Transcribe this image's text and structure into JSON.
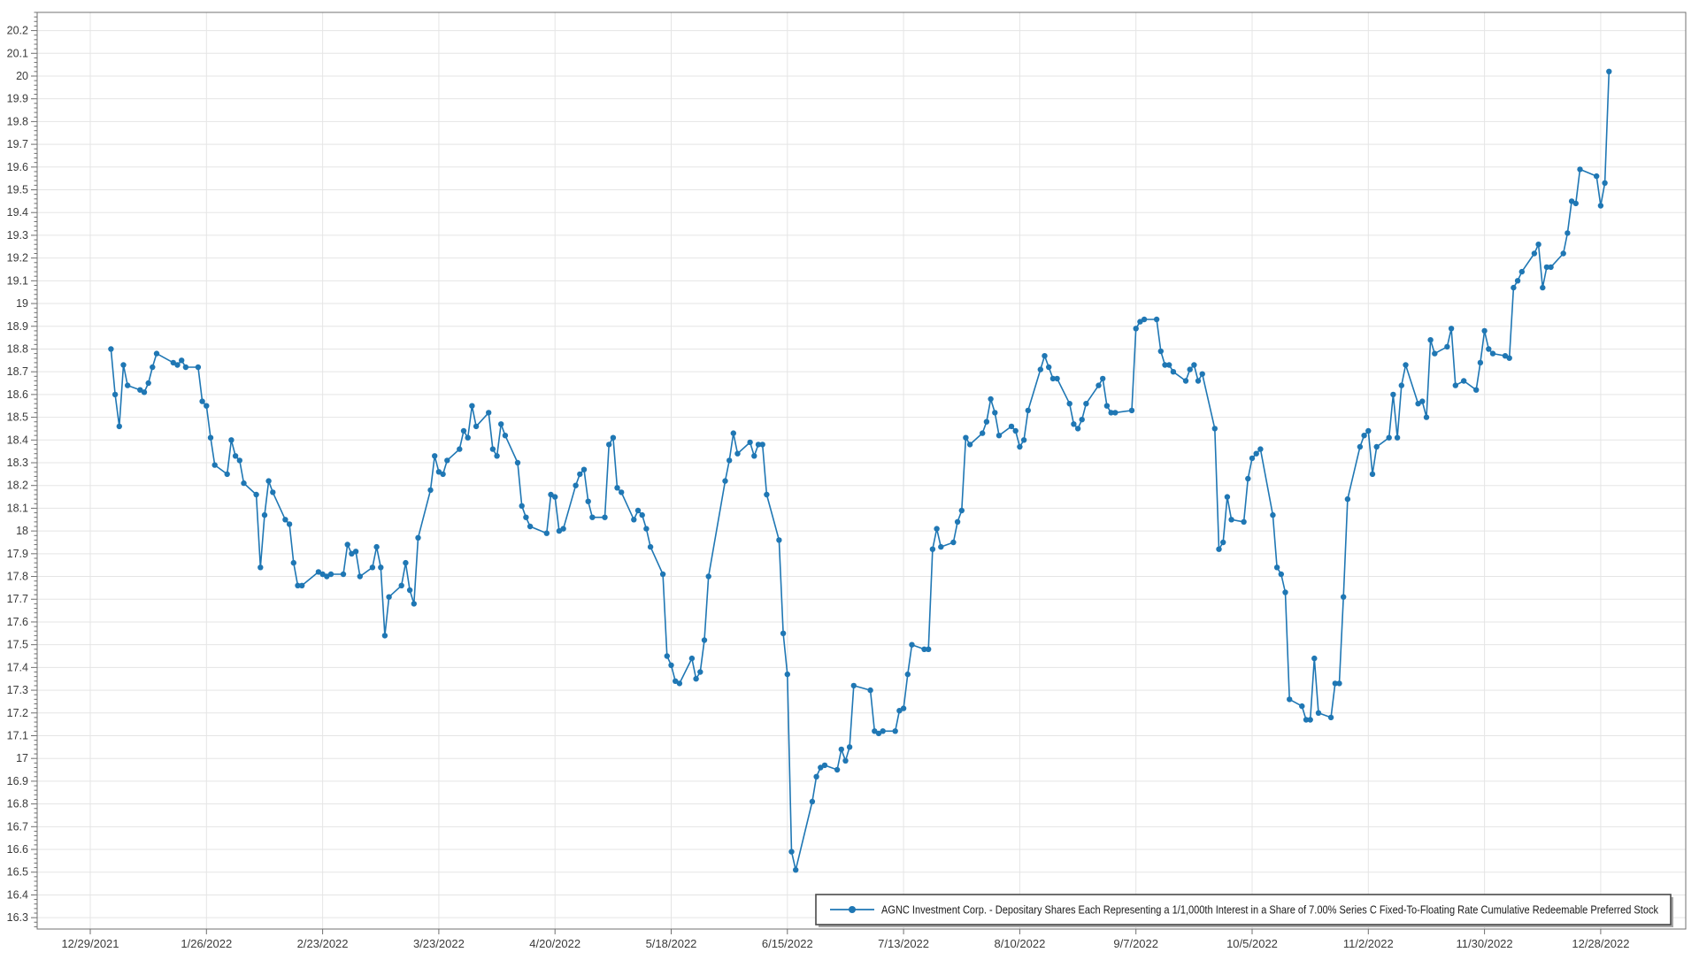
{
  "legend": {
    "label": "AGNC Investment Corp. - Depositary Shares Each Representing a 1/1,000th Interest in a Share of 7.00% Series C Fixed-To-Floating Rate Cumulative Redeemable Preferred Stock"
  },
  "colors": {
    "series": "#1f77b4",
    "grid": "#e5e5e5",
    "axis": "#707070",
    "label": "#3a3a3a",
    "legend_border": "#4a4a4a",
    "legend_shadow": "#a6a6a6",
    "background": "#ffffff"
  },
  "chart_data": {
    "type": "line",
    "title": "",
    "legend_position": "bottom-right",
    "grid": true,
    "marker": "circle",
    "series_name": "AGNC Investment Corp. - Depositary Shares Each Representing a 1/1,000th Interest in a Share of 7.00% Series C Fixed-To-Floating Rate Cumulative Redeemable Preferred Stock",
    "y_axis": {
      "min": 16.25,
      "max": 20.28,
      "tick_start": 16.3,
      "tick_end": 20.2,
      "tick_step": 0.1,
      "minor_tick_step": 0.02,
      "tick_labels": [
        "16.3",
        "16.4",
        "16.5",
        "16.6",
        "16.7",
        "16.8",
        "16.9",
        "17",
        "17.1",
        "17.2",
        "17.3",
        "17.4",
        "17.5",
        "17.6",
        "17.7",
        "17.8",
        "17.9",
        "18",
        "18.1",
        "18.2",
        "18.3",
        "18.4",
        "18.5",
        "18.6",
        "18.7",
        "18.8",
        "18.9",
        "19",
        "19.1",
        "19.2",
        "19.3",
        "19.4",
        "19.5",
        "19.6",
        "19.7",
        "19.8",
        "19.9",
        "20",
        "20.1",
        "20.2"
      ]
    },
    "x_axis": {
      "start_date": "2021-12-29",
      "tick_interval_days": 28,
      "tick_labels": [
        "12/29/2021",
        "1/26/2022",
        "2/23/2022",
        "3/23/2022",
        "4/20/2022",
        "5/18/2022",
        "6/15/2022",
        "7/13/2022",
        "8/10/2022",
        "9/7/2022",
        "10/5/2022",
        "11/2/2022",
        "11/30/2022",
        "12/28/2022"
      ]
    },
    "dates": [
      "2022-01-03",
      "2022-01-04",
      "2022-01-05",
      "2022-01-06",
      "2022-01-07",
      "2022-01-10",
      "2022-01-11",
      "2022-01-12",
      "2022-01-13",
      "2022-01-14",
      "2022-01-18",
      "2022-01-19",
      "2022-01-20",
      "2022-01-21",
      "2022-01-24",
      "2022-01-25",
      "2022-01-26",
      "2022-01-27",
      "2022-01-28",
      "2022-01-31",
      "2022-02-01",
      "2022-02-02",
      "2022-02-03",
      "2022-02-04",
      "2022-02-07",
      "2022-02-08",
      "2022-02-09",
      "2022-02-10",
      "2022-02-11",
      "2022-02-14",
      "2022-02-15",
      "2022-02-16",
      "2022-02-17",
      "2022-02-18",
      "2022-02-22",
      "2022-02-23",
      "2022-02-24",
      "2022-02-25",
      "2022-02-28",
      "2022-03-01",
      "2022-03-02",
      "2022-03-03",
      "2022-03-04",
      "2022-03-07",
      "2022-03-08",
      "2022-03-09",
      "2022-03-10",
      "2022-03-11",
      "2022-03-14",
      "2022-03-15",
      "2022-03-16",
      "2022-03-17",
      "2022-03-18",
      "2022-03-21",
      "2022-03-22",
      "2022-03-23",
      "2022-03-24",
      "2022-03-25",
      "2022-03-28",
      "2022-03-29",
      "2022-03-30",
      "2022-03-31",
      "2022-04-01",
      "2022-04-04",
      "2022-04-05",
      "2022-04-06",
      "2022-04-07",
      "2022-04-08",
      "2022-04-11",
      "2022-04-12",
      "2022-04-13",
      "2022-04-14",
      "2022-04-18",
      "2022-04-19",
      "2022-04-20",
      "2022-04-21",
      "2022-04-22",
      "2022-04-25",
      "2022-04-26",
      "2022-04-27",
      "2022-04-28",
      "2022-04-29",
      "2022-05-02",
      "2022-05-03",
      "2022-05-04",
      "2022-05-05",
      "2022-05-06",
      "2022-05-09",
      "2022-05-10",
      "2022-05-11",
      "2022-05-12",
      "2022-05-13",
      "2022-05-16",
      "2022-05-17",
      "2022-05-18",
      "2022-05-19",
      "2022-05-20",
      "2022-05-23",
      "2022-05-24",
      "2022-05-25",
      "2022-05-26",
      "2022-05-27",
      "2022-05-31",
      "2022-06-01",
      "2022-06-02",
      "2022-06-03",
      "2022-06-06",
      "2022-06-07",
      "2022-06-08",
      "2022-06-09",
      "2022-06-10",
      "2022-06-13",
      "2022-06-14",
      "2022-06-15",
      "2022-06-16",
      "2022-06-17",
      "2022-06-21",
      "2022-06-22",
      "2022-06-23",
      "2022-06-24",
      "2022-06-27",
      "2022-06-28",
      "2022-06-29",
      "2022-06-30",
      "2022-07-01",
      "2022-07-05",
      "2022-07-06",
      "2022-07-07",
      "2022-07-08",
      "2022-07-11",
      "2022-07-12",
      "2022-07-13",
      "2022-07-14",
      "2022-07-15",
      "2022-07-18",
      "2022-07-19",
      "2022-07-20",
      "2022-07-21",
      "2022-07-22",
      "2022-07-25",
      "2022-07-26",
      "2022-07-27",
      "2022-07-28",
      "2022-07-29",
      "2022-08-01",
      "2022-08-02",
      "2022-08-03",
      "2022-08-04",
      "2022-08-05",
      "2022-08-08",
      "2022-08-09",
      "2022-08-10",
      "2022-08-11",
      "2022-08-12",
      "2022-08-15",
      "2022-08-16",
      "2022-08-17",
      "2022-08-18",
      "2022-08-19",
      "2022-08-22",
      "2022-08-23",
      "2022-08-24",
      "2022-08-25",
      "2022-08-26",
      "2022-08-29",
      "2022-08-30",
      "2022-08-31",
      "2022-09-01",
      "2022-09-02",
      "2022-09-06",
      "2022-09-07",
      "2022-09-08",
      "2022-09-09",
      "2022-09-12",
      "2022-09-13",
      "2022-09-14",
      "2022-09-15",
      "2022-09-16",
      "2022-09-19",
      "2022-09-20",
      "2022-09-21",
      "2022-09-22",
      "2022-09-23",
      "2022-09-26",
      "2022-09-27",
      "2022-09-28",
      "2022-09-29",
      "2022-09-30",
      "2022-10-03",
      "2022-10-04",
      "2022-10-05",
      "2022-10-06",
      "2022-10-07",
      "2022-10-10",
      "2022-10-11",
      "2022-10-12",
      "2022-10-13",
      "2022-10-14",
      "2022-10-17",
      "2022-10-18",
      "2022-10-19",
      "2022-10-20",
      "2022-10-21",
      "2022-10-24",
      "2022-10-25",
      "2022-10-26",
      "2022-10-27",
      "2022-10-28",
      "2022-10-31",
      "2022-11-01",
      "2022-11-02",
      "2022-11-03",
      "2022-11-04",
      "2022-11-07",
      "2022-11-08",
      "2022-11-09",
      "2022-11-10",
      "2022-11-11",
      "2022-11-14",
      "2022-11-15",
      "2022-11-16",
      "2022-11-17",
      "2022-11-18",
      "2022-11-21",
      "2022-11-22",
      "2022-11-23",
      "2022-11-25",
      "2022-11-28",
      "2022-11-29",
      "2022-11-30",
      "2022-12-01",
      "2022-12-02",
      "2022-12-05",
      "2022-12-06",
      "2022-12-07",
      "2022-12-08",
      "2022-12-09",
      "2022-12-12",
      "2022-12-13",
      "2022-12-14",
      "2022-12-15",
      "2022-12-16",
      "2022-12-19",
      "2022-12-20",
      "2022-12-21",
      "2022-12-22",
      "2022-12-23",
      "2022-12-27",
      "2022-12-28",
      "2022-12-29",
      "2022-12-30"
    ],
    "values": [
      18.8,
      18.6,
      18.46,
      18.73,
      18.64,
      18.62,
      18.61,
      18.65,
      18.72,
      18.78,
      18.74,
      18.73,
      18.75,
      18.72,
      18.72,
      18.57,
      18.55,
      18.41,
      18.29,
      18.25,
      18.4,
      18.33,
      18.31,
      18.21,
      18.16,
      17.84,
      18.07,
      18.22,
      18.17,
      18.05,
      18.03,
      17.86,
      17.76,
      17.76,
      17.82,
      17.81,
      17.8,
      17.81,
      17.81,
      17.94,
      17.9,
      17.91,
      17.8,
      17.84,
      17.93,
      17.84,
      17.54,
      17.71,
      17.76,
      17.86,
      17.74,
      17.68,
      17.97,
      18.18,
      18.33,
      18.26,
      18.25,
      18.31,
      18.36,
      18.44,
      18.41,
      18.55,
      18.46,
      18.52,
      18.36,
      18.33,
      18.47,
      18.42,
      18.3,
      18.11,
      18.06,
      18.02,
      17.99,
      18.16,
      18.15,
      18.0,
      18.01,
      18.2,
      18.25,
      18.27,
      18.13,
      18.06,
      18.06,
      18.38,
      18.41,
      18.19,
      18.17,
      18.05,
      18.09,
      18.07,
      18.01,
      17.93,
      17.81,
      17.45,
      17.41,
      17.34,
      17.33,
      17.44,
      17.35,
      17.38,
      17.52,
      17.8,
      18.22,
      18.31,
      18.43,
      18.34,
      18.39,
      18.33,
      18.38,
      18.38,
      18.16,
      17.96,
      17.55,
      17.37,
      16.59,
      16.51,
      16.81,
      16.92,
      16.96,
      16.97,
      16.95,
      17.04,
      16.99,
      17.05,
      17.32,
      17.3,
      17.12,
      17.11,
      17.12,
      17.12,
      17.21,
      17.22,
      17.37,
      17.5,
      17.48,
      17.48,
      17.92,
      18.01,
      17.93,
      17.95,
      18.04,
      18.09,
      18.41,
      18.38,
      18.43,
      18.48,
      18.58,
      18.52,
      18.42,
      18.46,
      18.44,
      18.37,
      18.4,
      18.53,
      18.71,
      18.77,
      18.72,
      18.67,
      18.67,
      18.56,
      18.47,
      18.45,
      18.49,
      18.56,
      18.64,
      18.67,
      18.55,
      18.52,
      18.52,
      18.53,
      18.89,
      18.92,
      18.93,
      18.93,
      18.79,
      18.73,
      18.73,
      18.7,
      18.66,
      18.71,
      18.73,
      18.66,
      18.69,
      18.45,
      17.92,
      17.95,
      18.15,
      18.05,
      18.04,
      18.23,
      18.32,
      18.34,
      18.36,
      18.07,
      17.84,
      17.81,
      17.73,
      17.26,
      17.23,
      17.17,
      17.17,
      17.44,
      17.2,
      17.18,
      17.33,
      17.33,
      17.71,
      18.14,
      18.37,
      18.42,
      18.44,
      18.25,
      18.37,
      18.41,
      18.6,
      18.41,
      18.64,
      18.73,
      18.56,
      18.57,
      18.5,
      18.84,
      18.78,
      18.81,
      18.89,
      18.64,
      18.66,
      18.62,
      18.74,
      18.88,
      18.8,
      18.78,
      18.77,
      18.76,
      19.07,
      19.1,
      19.14,
      19.22,
      19.26,
      19.07,
      19.16,
      19.16,
      19.22,
      19.31,
      19.45,
      19.44,
      19.59,
      19.56,
      19.43,
      19.53,
      20.02
    ]
  }
}
